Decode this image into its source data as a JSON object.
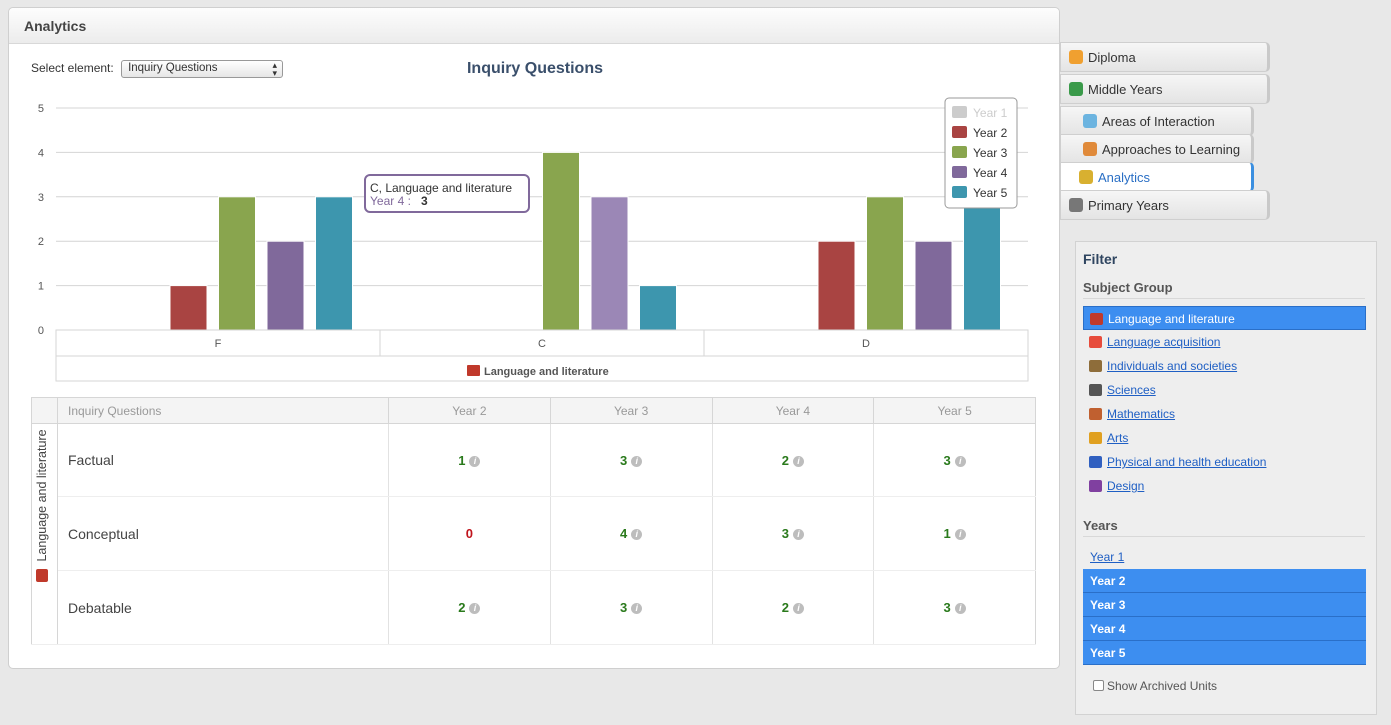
{
  "panel": {
    "title": "Analytics"
  },
  "select": {
    "label": "Select element:",
    "value": "Inquiry Questions"
  },
  "chart_data": {
    "type": "bar",
    "title": "Inquiry Questions",
    "categories": [
      "F",
      "C",
      "D"
    ],
    "group_label": "Language and literature",
    "ylim": [
      0,
      5
    ],
    "yticks": [
      0,
      1,
      2,
      3,
      4,
      5
    ],
    "legend_position": "top-right",
    "series": [
      {
        "name": "Year 1",
        "values": [
          0,
          0,
          0
        ],
        "color": "#cccccc",
        "hidden": true
      },
      {
        "name": "Year 2",
        "values": [
          1,
          0,
          2
        ],
        "color": "#a94442"
      },
      {
        "name": "Year 3",
        "values": [
          3,
          4,
          3
        ],
        "color": "#89a54e"
      },
      {
        "name": "Year 4",
        "values": [
          2,
          3,
          2
        ],
        "color": "#80699b"
      },
      {
        "name": "Year 5",
        "values": [
          3,
          1,
          3
        ],
        "color": "#3d96ae"
      }
    ],
    "tooltip": {
      "title": "C, Language and literature",
      "series": "Year 4 :",
      "value": "3"
    }
  },
  "table": {
    "group": "Language and literature",
    "headers": [
      "Inquiry Questions",
      "Year 2",
      "Year 3",
      "Year 4",
      "Year 5"
    ],
    "rows": [
      {
        "label": "Factual",
        "values": [
          1,
          3,
          2,
          3
        ]
      },
      {
        "label": "Conceptual",
        "values": [
          0,
          4,
          3,
          1
        ]
      },
      {
        "label": "Debatable",
        "values": [
          2,
          3,
          2,
          3
        ]
      }
    ]
  },
  "tabs": [
    {
      "label": "Diploma",
      "icon": "diploma-icon",
      "color": "#f0a030"
    },
    {
      "label": "Middle Years",
      "icon": "globe-icon",
      "color": "#3a9a4a"
    },
    {
      "label": "Areas of Interaction",
      "icon": "puzzle-icon",
      "color": "#6cb4e0"
    },
    {
      "label": "Approaches to Learning",
      "icon": "blocks-icon",
      "color": "#e08a3a"
    },
    {
      "label": "Analytics",
      "icon": "chart-icon",
      "color": "#d8b030"
    },
    {
      "label": "Primary Years",
      "icon": "person-icon",
      "color": "#777777"
    }
  ],
  "filter": {
    "title": "Filter",
    "subject_group_title": "Subject Group",
    "subject_groups": [
      {
        "label": "Language and literature",
        "icon": "book-icon",
        "color": "#c0392b",
        "selected": true
      },
      {
        "label": "Language acquisition",
        "icon": "flags-icon",
        "color": "#e74c3c",
        "selected": false
      },
      {
        "label": "Individuals and societies",
        "icon": "people-icon",
        "color": "#8e6d3a",
        "selected": false
      },
      {
        "label": "Sciences",
        "icon": "microscope-icon",
        "color": "#555555",
        "selected": false
      },
      {
        "label": "Mathematics",
        "icon": "protractor-icon",
        "color": "#c06030",
        "selected": false
      },
      {
        "label": "Arts",
        "icon": "palette-icon",
        "color": "#e0a020",
        "selected": false
      },
      {
        "label": "Physical and health education",
        "icon": "racket-icon",
        "color": "#3060c0",
        "selected": false
      },
      {
        "label": "Design",
        "icon": "design-icon",
        "color": "#8040a0",
        "selected": false
      }
    ],
    "years_title": "Years",
    "years": [
      {
        "label": "Year 1",
        "selected": false
      },
      {
        "label": "Year 2",
        "selected": true
      },
      {
        "label": "Year 3",
        "selected": true
      },
      {
        "label": "Year 4",
        "selected": true
      },
      {
        "label": "Year 5",
        "selected": true
      }
    ],
    "archived_label": "Show Archived Units"
  }
}
